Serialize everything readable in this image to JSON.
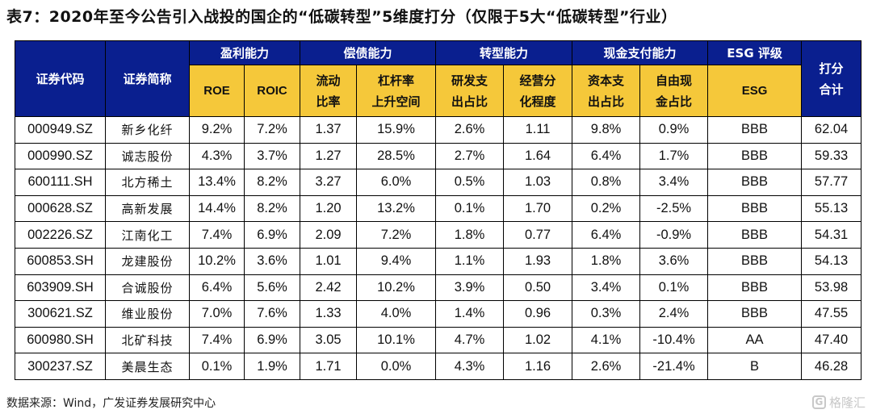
{
  "title": "表7：2020年至今公告引入战投的国企的“低碳转型”5维度打分（仅限于5大“低碳转型”行业）",
  "headers": {
    "code": "证券代码",
    "name": "证券简称",
    "groups": [
      "盈利能力",
      "偿债能力",
      "转型能力",
      "现金支付能力",
      "ESG 评级"
    ],
    "total": [
      "打分",
      "合计"
    ],
    "sub": [
      [
        "ROE"
      ],
      [
        "ROIC"
      ],
      [
        "流动",
        "比率"
      ],
      [
        "杠杆率",
        "上升空间"
      ],
      [
        "研发支",
        "出占比"
      ],
      [
        "经营分",
        "化程度"
      ],
      [
        "资本支",
        "出占比"
      ],
      [
        "自由现",
        "金占比"
      ],
      [
        "ESG"
      ]
    ]
  },
  "rows": [
    [
      "000949.SZ",
      "新乡化纤",
      "9.2%",
      "7.2%",
      "1.37",
      "15.9%",
      "2.6%",
      "1.11",
      "9.8%",
      "0.9%",
      "BBB",
      "62.04"
    ],
    [
      "000990.SZ",
      "诚志股份",
      "4.3%",
      "3.7%",
      "1.27",
      "28.5%",
      "2.7%",
      "1.64",
      "6.4%",
      "1.7%",
      "BBB",
      "59.33"
    ],
    [
      "600111.SH",
      "北方稀土",
      "13.4%",
      "8.2%",
      "3.27",
      "6.0%",
      "0.5%",
      "1.03",
      "0.8%",
      "3.4%",
      "BBB",
      "57.77"
    ],
    [
      "000628.SZ",
      "高新发展",
      "14.4%",
      "8.2%",
      "1.20",
      "13.2%",
      "0.1%",
      "1.70",
      "0.2%",
      "-2.5%",
      "BBB",
      "55.13"
    ],
    [
      "002226.SZ",
      "江南化工",
      "7.4%",
      "6.9%",
      "2.09",
      "7.2%",
      "1.8%",
      "0.77",
      "6.4%",
      "-0.9%",
      "BBB",
      "54.31"
    ],
    [
      "600853.SH",
      "龙建股份",
      "10.2%",
      "3.6%",
      "1.01",
      "9.4%",
      "1.1%",
      "1.93",
      "1.8%",
      "3.6%",
      "BBB",
      "54.13"
    ],
    [
      "603909.SH",
      "合诚股份",
      "6.4%",
      "5.6%",
      "2.42",
      "10.2%",
      "3.9%",
      "0.50",
      "3.4%",
      "0.1%",
      "BBB",
      "53.98"
    ],
    [
      "300621.SZ",
      "维业股份",
      "7.0%",
      "7.6%",
      "1.33",
      "4.0%",
      "1.4%",
      "0.96",
      "0.3%",
      "2.4%",
      "BBB",
      "47.55"
    ],
    [
      "600980.SH",
      "北矿科技",
      "7.4%",
      "6.9%",
      "3.05",
      "10.1%",
      "4.7%",
      "1.02",
      "4.1%",
      "-10.4%",
      "AA",
      "47.40"
    ],
    [
      "300237.SZ",
      "美晨生态",
      "0.1%",
      "1.9%",
      "1.71",
      "0.0%",
      "4.3%",
      "1.16",
      "2.6%",
      "-21.4%",
      "B",
      "46.28"
    ]
  ],
  "source": "数据来源：Wind，广发证券发展研究中心",
  "watermark": "格隆汇",
  "colors": {
    "header_blue": "#0a1f8f",
    "header_yellow": "#f5c83a"
  }
}
